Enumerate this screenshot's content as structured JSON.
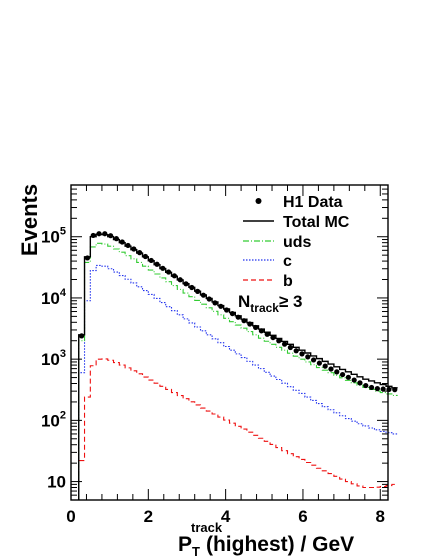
{
  "chart_data": {
    "type": "line",
    "xlabel_main": "P",
    "xlabel_sub": "T",
    "xlabel_sup": "track",
    "xlabel_rest": "(highest)  / GeV",
    "ylabel": "Events",
    "xlim": [
      0,
      8.2
    ],
    "ylim": [
      5,
      700000
    ],
    "yscale": "log",
    "x_ticks": [
      0,
      2,
      4,
      6,
      8
    ],
    "x_tick_labels": [
      "0",
      "2",
      "4",
      "6",
      "8"
    ],
    "y_ticks": [
      10,
      100,
      1000,
      10000,
      100000
    ],
    "y_tick_labels": [
      {
        "base": "10",
        "exp": ""
      },
      {
        "base": "10",
        "exp": "2"
      },
      {
        "base": "10",
        "exp": "3"
      },
      {
        "base": "10",
        "exp": "4"
      },
      {
        "base": "10",
        "exp": "5"
      }
    ],
    "annotation": {
      "main": "N",
      "sub": "track",
      "rest": "≥ 3"
    },
    "legend_position": "top-right",
    "bin_width": 0.15,
    "bin_start": 0.2,
    "series": [
      {
        "name": "H1 Data",
        "style": "markers",
        "color": "#000000",
        "values": [
          2400,
          45000,
          105000,
          112000,
          112000,
          104000,
          93000,
          82000,
          72000,
          63000,
          55000,
          47500,
          41000,
          35500,
          30500,
          26500,
          23000,
          19800,
          17000,
          14800,
          12800,
          11100,
          9600,
          8300,
          7300,
          6350,
          5550,
          4850,
          4250,
          3750,
          3300,
          2900,
          2550,
          2250,
          2000,
          1760,
          1550,
          1370,
          1220,
          1090,
          970,
          860,
          770,
          690,
          620,
          560,
          505,
          455,
          410,
          370,
          345,
          330,
          325,
          320,
          318
        ]
      },
      {
        "name": "Total MC",
        "style": "solid",
        "color": "#000000",
        "values": [
          2500,
          47000,
          100000,
          110000,
          108000,
          100000,
          90000,
          80000,
          70000,
          61500,
          54000,
          47000,
          40500,
          35000,
          30200,
          26200,
          22700,
          19700,
          17100,
          14900,
          12900,
          11200,
          9800,
          8600,
          7500,
          6600,
          5800,
          5100,
          4500,
          3950,
          3500,
          3100,
          2750,
          2450,
          2180,
          1950,
          1750,
          1560,
          1400,
          1260,
          1130,
          1020,
          920,
          830,
          750,
          680,
          620,
          565,
          515,
          470,
          440,
          410,
          385,
          360,
          340
        ]
      },
      {
        "name": "uds",
        "style": "dashdot",
        "color": "#33cc33",
        "values": [
          2000,
          38000,
          68000,
          78000,
          76000,
          70000,
          63000,
          56000,
          49000,
          43500,
          38000,
          33000,
          28500,
          24600,
          21200,
          18400,
          15900,
          13800,
          12000,
          10500,
          9100,
          7900,
          6900,
          6050,
          5300,
          4650,
          4100,
          3600,
          3200,
          2820,
          2500,
          2200,
          1960,
          1750,
          1560,
          1400,
          1250,
          1120,
          1000,
          900,
          810,
          730,
          660,
          600,
          545,
          495,
          450,
          410,
          375,
          345,
          320,
          300,
          285,
          270,
          255
        ]
      },
      {
        "name": "c",
        "style": "dotted",
        "color": "#2233ee",
        "values": [
          600,
          9000,
          28000,
          34000,
          33000,
          30000,
          26500,
          23200,
          20200,
          17600,
          15200,
          13200,
          11400,
          9800,
          8400,
          7200,
          6200,
          5300,
          4550,
          3900,
          3350,
          2900,
          2500,
          2150,
          1860,
          1610,
          1400,
          1220,
          1060,
          920,
          800,
          700,
          610,
          530,
          465,
          405,
          355,
          310,
          275,
          240,
          212,
          188,
          167,
          149,
          133,
          119,
          107,
          97,
          88,
          81,
          75,
          70,
          66,
          63,
          60
        ]
      },
      {
        "name": "b",
        "style": "dashed",
        "color": "#ee1111",
        "values": [
          22,
          240,
          780,
          1000,
          1010,
          960,
          880,
          800,
          720,
          645,
          575,
          510,
          455,
          405,
          360,
          320,
          285,
          254,
          226,
          201,
          179,
          159,
          142,
          127,
          113,
          101,
          90,
          80,
          72,
          64,
          57,
          51,
          45.5,
          40.5,
          36,
          32,
          28.5,
          25.5,
          23,
          20.5,
          18.5,
          16.5,
          15,
          13.5,
          12.2,
          11,
          10,
          9.2,
          8.5,
          8,
          8,
          8.1,
          8.3,
          8.6,
          9
        ]
      }
    ]
  }
}
